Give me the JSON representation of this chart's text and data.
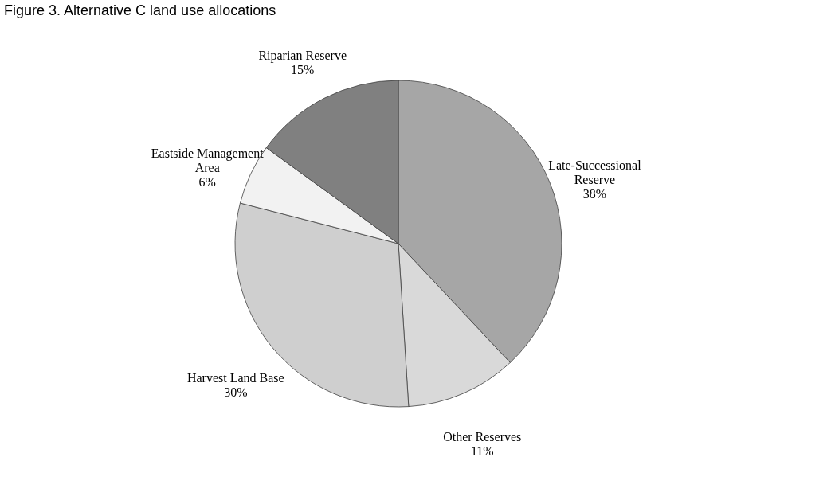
{
  "chart_data": {
    "type": "pie",
    "title": "Figure 3. Alternative C land use allocations",
    "categories": [
      "Late-Successional\nReserve",
      "Other Reserves",
      "Harvest Land Base",
      "Eastside Management\nArea",
      "Riparian Reserve"
    ],
    "values": [
      38,
      11,
      30,
      6,
      15
    ],
    "value_labels": [
      "38%",
      "11%",
      "30%",
      "6%",
      "15%"
    ],
    "colors": [
      "#a6a6a6",
      "#d9d9d9",
      "#cfcfcf",
      "#f2f2f2",
      "#808080"
    ],
    "legend": false
  }
}
